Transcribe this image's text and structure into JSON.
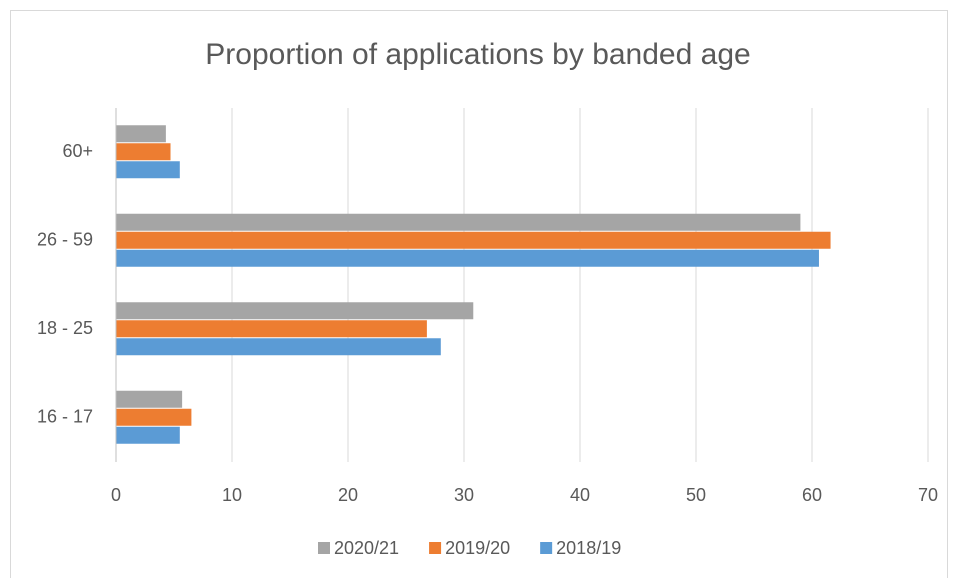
{
  "chart_data": {
    "type": "bar",
    "orientation": "horizontal",
    "title": "Proportion of applications by banded age",
    "categories": [
      "16 - 17",
      "18 - 25",
      "26 - 59",
      "60+"
    ],
    "series": [
      {
        "name": "2020/21",
        "color": "#a5a5a5",
        "values": [
          5.7,
          30.8,
          59.0,
          4.3
        ]
      },
      {
        "name": "2019/20",
        "color": "#ed7d31",
        "values": [
          6.5,
          26.8,
          61.6,
          4.7
        ]
      },
      {
        "name": "2018/19",
        "color": "#5b9bd5",
        "values": [
          5.5,
          28.0,
          60.6,
          5.5
        ]
      }
    ],
    "xlim": [
      0,
      70
    ],
    "xticks": [
      0,
      10,
      20,
      30,
      40,
      50,
      60,
      70
    ],
    "grid": true,
    "legend": "bottom"
  }
}
